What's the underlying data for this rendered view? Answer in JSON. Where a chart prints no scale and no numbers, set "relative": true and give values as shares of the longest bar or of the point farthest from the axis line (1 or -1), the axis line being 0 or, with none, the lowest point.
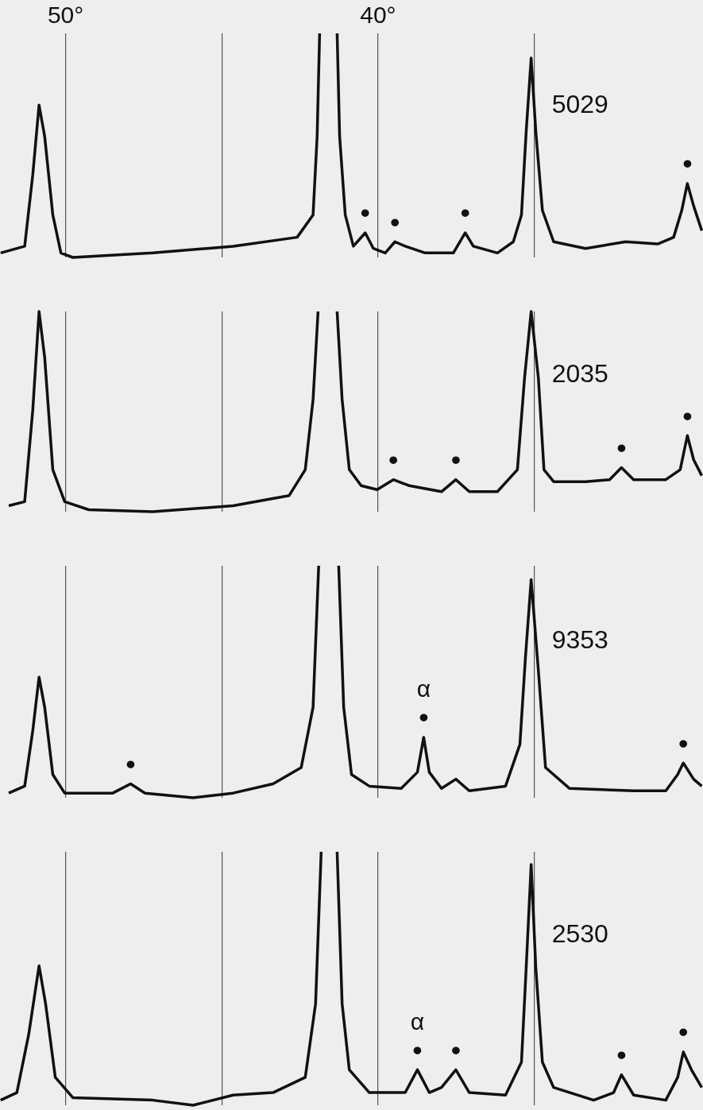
{
  "chart_data": [
    {
      "type": "line",
      "relative": true,
      "xlim": [
        52.1,
        29.6
      ],
      "xticks": [
        {
          "value": 50,
          "label": "50°"
        },
        {
          "value": 45,
          "label": null
        },
        {
          "value": 40,
          "label": "40°"
        },
        {
          "value": 35,
          "label": null
        }
      ],
      "tick_labels": "x",
      "grid": "x",
      "legend": false,
      "x": [
        52.08,
        51.31,
        51.05,
        50.85,
        50.67,
        50.41,
        50.15,
        49.77,
        47.21,
        44.64,
        42.59,
        42.08,
        41.95,
        41.87,
        41.59,
        41.31,
        41.23,
        41.05,
        40.79,
        40.41,
        40.15,
        39.77,
        39.46,
        39.13,
        38.49,
        37.59,
        37.21,
        36.95,
        36.18,
        35.67,
        35.41,
        35.26,
        35.1,
        34.95,
        34.74,
        34.38,
        33.36,
        32.08,
        31.05,
        30.54,
        30.28,
        30.1,
        29.9,
        29.64
      ],
      "series": [
        {
          "color": "#111111",
          "values": [
            0.02,
            0.05,
            0.37,
            0.68,
            0.54,
            0.19,
            0.02,
            0,
            0.02,
            0.05,
            0.09,
            0.19,
            0.54,
            1,
            null,
            1,
            0.54,
            0.19,
            0.05,
            0.11,
            0.04,
            0.02,
            0.07,
            0.05,
            0.02,
            0.02,
            0.11,
            0.05,
            0.02,
            0.07,
            0.19,
            0.56,
            0.89,
            0.56,
            0.21,
            0.07,
            0.04,
            0.07,
            0.06,
            0.09,
            0.21,
            0.33,
            0.23,
            0.12
          ]
        }
      ],
      "annotations": [
        "5029",
        {
          "text": "•",
          "x": 40.41,
          "y": 0.11
        },
        {
          "text": "•",
          "x": 39.46,
          "y": 0.07
        },
        {
          "text": "•",
          "x": 37.21,
          "y": 0.11
        },
        {
          "text": "•",
          "x": 30.1,
          "y": 0.33
        }
      ]
    },
    {
      "type": "line",
      "relative": true,
      "xlim": [
        52.1,
        29.6
      ],
      "xticks": [
        {
          "value": 50,
          "label": null
        },
        {
          "value": 45,
          "label": null
        },
        {
          "value": 40,
          "label": null
        },
        {
          "value": 35,
          "label": null
        }
      ],
      "tick_labels": false,
      "grid": "x",
      "legend": false,
      "x": [
        51.82,
        51.31,
        51.05,
        50.85,
        50.67,
        50.41,
        50.03,
        49.26,
        47.21,
        44.64,
        42.85,
        42.33,
        42.08,
        41.92,
        41.59,
        41.31,
        41.15,
        40.92,
        40.54,
        40.03,
        39.51,
        39.0,
        37.97,
        37.51,
        37.08,
        36.18,
        35.54,
        35.31,
        35.1,
        34.87,
        34.69,
        34.38,
        33.36,
        32.59,
        32.21,
        31.82,
        30.79,
        30.33,
        30.1,
        29.9,
        29.64
      ],
      "series": [
        {
          "color": "#111111",
          "values": [
            0.03,
            0.05,
            0.51,
            1.0,
            0.77,
            0.21,
            0.05,
            0.01,
            0,
            0.03,
            0.08,
            0.21,
            0.56,
            1,
            null,
            1,
            0.56,
            0.21,
            0.13,
            0.11,
            0.16,
            0.13,
            0.1,
            0.16,
            0.1,
            0.1,
            0.21,
            0.67,
            1,
            0.67,
            0.21,
            0.15,
            0.15,
            0.16,
            0.22,
            0.16,
            0.16,
            0.21,
            0.38,
            0.26,
            0.18
          ]
        }
      ],
      "annotations": [
        "2035",
        {
          "text": "•",
          "x": 39.51,
          "y": 0.16
        },
        {
          "text": "•",
          "x": 37.51,
          "y": 0.16
        },
        {
          "text": "•",
          "x": 32.21,
          "y": 0.22
        },
        {
          "text": "•",
          "x": 30.1,
          "y": 0.38
        }
      ]
    },
    {
      "type": "line",
      "relative": true,
      "xlim": [
        52.1,
        29.6
      ],
      "xticks": [
        {
          "value": 50,
          "label": null
        },
        {
          "value": 45,
          "label": null
        },
        {
          "value": 40,
          "label": null
        },
        {
          "value": 35,
          "label": null
        }
      ],
      "tick_labels": false,
      "grid": "x",
      "legend": false,
      "x": [
        51.82,
        51.31,
        51.05,
        50.85,
        50.67,
        50.41,
        50.03,
        48.49,
        47.92,
        47.46,
        45.92,
        44.64,
        43.36,
        42.46,
        42.08,
        41.9,
        41.59,
        41.26,
        41.1,
        40.85,
        40.28,
        39.26,
        38.74,
        38.54,
        38.36,
        37.97,
        37.51,
        37.08,
        35.92,
        35.46,
        35.28,
        35.1,
        34.87,
        34.64,
        33.87,
        31.82,
        30.79,
        30.41,
        30.23,
        29.9,
        29.64
      ],
      "series": [
        {
          "color": "#111111",
          "values": [
            0.02,
            0.05,
            0.29,
            0.52,
            0.39,
            0.1,
            0.02,
            0.02,
            0.06,
            0.02,
            0,
            0.02,
            0.06,
            0.13,
            0.39,
            1,
            null,
            1,
            0.39,
            0.1,
            0.05,
            0.04,
            0.11,
            0.26,
            0.11,
            0.04,
            0.08,
            0.03,
            0.05,
            0.23,
            0.61,
            0.94,
            0.55,
            0.13,
            0.04,
            0.03,
            0.03,
            0.1,
            0.15,
            0.08,
            0.05
          ]
        }
      ],
      "annotations": [
        "9353",
        {
          "text": "•",
          "x": 47.92,
          "y": 0.06
        },
        {
          "text": "•",
          "x": 38.54,
          "y": 0.26
        },
        {
          "text": "α",
          "x": 38.54,
          "y": 0.26
        },
        {
          "text": "•",
          "x": 30.23,
          "y": 0.15
        }
      ]
    },
    {
      "type": "line",
      "relative": true,
      "xlim": [
        52.1,
        29.6
      ],
      "xticks": [
        {
          "value": 50,
          "label": null
        },
        {
          "value": 45,
          "label": null
        },
        {
          "value": 40,
          "label": null
        },
        {
          "value": 35,
          "label": null
        }
      ],
      "tick_labels": false,
      "grid": "x",
      "legend": false,
      "x": [
        52.08,
        51.56,
        51.18,
        50.85,
        50.64,
        50.33,
        49.77,
        47.21,
        45.92,
        44.64,
        43.36,
        42.33,
        42.0,
        41.82,
        41.54,
        41.31,
        41.15,
        40.92,
        40.28,
        39.13,
        38.74,
        38.36,
        37.97,
        37.51,
        37.08,
        35.92,
        35.41,
        35.26,
        35.1,
        34.95,
        34.74,
        34.38,
        33.1,
        32.46,
        32.21,
        31.82,
        30.79,
        30.41,
        30.23,
        29.97,
        29.64
      ],
      "series": [
        {
          "color": "#111111",
          "values": [
            0.02,
            0.05,
            0.28,
            0.55,
            0.4,
            0.11,
            0.03,
            0.02,
            0,
            0.04,
            0.05,
            0.11,
            0.4,
            1,
            null,
            1,
            0.4,
            0.14,
            0.05,
            0.05,
            0.14,
            0.05,
            0.07,
            0.14,
            0.05,
            0.04,
            0.17,
            0.54,
            0.95,
            0.54,
            0.17,
            0.07,
            0.02,
            0.05,
            0.12,
            0.04,
            0.02,
            0.11,
            0.21,
            0.14,
            0.07
          ]
        }
      ],
      "annotations": [
        "2530",
        {
          "text": "•",
          "x": 38.74,
          "y": 0.14
        },
        {
          "text": "α",
          "x": 38.74,
          "y": 0.14
        },
        {
          "text": "•",
          "x": 37.51,
          "y": 0.14
        },
        {
          "text": "•",
          "x": 32.21,
          "y": 0.12
        },
        {
          "text": "•",
          "x": 30.23,
          "y": 0.21
        }
      ]
    }
  ]
}
